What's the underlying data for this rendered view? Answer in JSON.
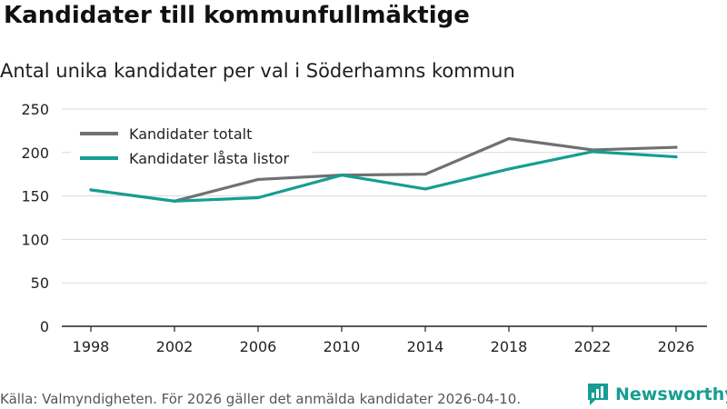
{
  "title": "Kandidater till kommunfullmäktige",
  "subtitle": "Antal unika kandidater per val i Söderhamns kommun",
  "source": "Källa: Valmyndigheten. För 2026 gäller det anmälda kandidater 2026-04-10.",
  "brand": {
    "name": "Newsworthy",
    "icon": "newsworthy-logo-icon",
    "color": "#159e91"
  },
  "chart_data": {
    "type": "line",
    "title": "Kandidater till kommunfullmäktige",
    "subtitle": "Antal unika kandidater per val i Söderhamns kommun",
    "xlabel": "",
    "ylabel": "",
    "categories": [
      "1998",
      "2002",
      "2006",
      "2010",
      "2014",
      "2018",
      "2022",
      "2026"
    ],
    "ylim": [
      0,
      250
    ],
    "yticks": [
      0,
      50,
      100,
      150,
      200,
      250
    ],
    "grid": true,
    "legend_position": "top-left",
    "series": [
      {
        "name": "Kandidater totalt",
        "color": "#707070",
        "values": [
          157,
          144,
          169,
          174,
          175,
          216,
          203,
          206
        ]
      },
      {
        "name": "Kandidater låsta listor",
        "color": "#159e91",
        "values": [
          157,
          144,
          148,
          174,
          158,
          181,
          201,
          195
        ]
      }
    ]
  }
}
